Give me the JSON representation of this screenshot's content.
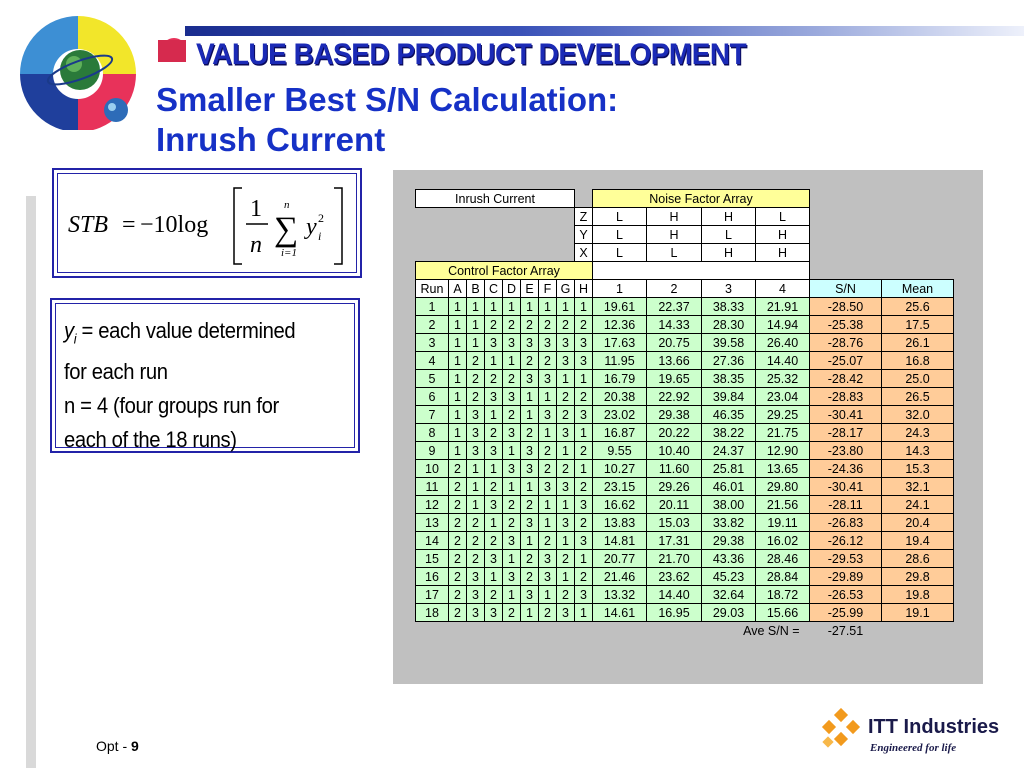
{
  "header": {
    "banner": "VALUE BASED PRODUCT DEVELOPMENT",
    "title_line1": "Smaller Best S/N Calculation:",
    "title_line2": "Inrush Current"
  },
  "formula": {
    "lhs": "STB",
    "eq": "=",
    "coef": "−10log",
    "num": "1",
    "den": "n",
    "sum_upper": "n",
    "sum_lower": "i=1",
    "var": "y",
    "sub": "i",
    "sup": "2"
  },
  "definitions": {
    "yi_var": "y",
    "yi_sub": "i",
    "line1_rest": " = each value determined",
    "line2": "for each run",
    "line3": "n = 4 (four groups run for",
    "line4": "each of the 18 runs)"
  },
  "table": {
    "inrush_label": "Inrush Current",
    "noise_label": "Noise Factor Array",
    "control_label": "Control Factor Array",
    "noise_rows": [
      {
        "factor": "Z",
        "levels": [
          "L",
          "H",
          "H",
          "L"
        ]
      },
      {
        "factor": "Y",
        "levels": [
          "L",
          "H",
          "L",
          "H"
        ]
      },
      {
        "factor": "X",
        "levels": [
          "L",
          "L",
          "H",
          "H"
        ]
      }
    ],
    "headers": [
      "Run",
      "A",
      "B",
      "C",
      "D",
      "E",
      "F",
      "G",
      "H",
      "1",
      "2",
      "3",
      "4",
      "S/N",
      "Mean"
    ],
    "rows": [
      [
        "1",
        "1",
        "1",
        "1",
        "1",
        "1",
        "1",
        "1",
        "1",
        "19.61",
        "22.37",
        "38.33",
        "21.91",
        "-28.50",
        "25.6"
      ],
      [
        "2",
        "1",
        "1",
        "2",
        "2",
        "2",
        "2",
        "2",
        "2",
        "12.36",
        "14.33",
        "28.30",
        "14.94",
        "-25.38",
        "17.5"
      ],
      [
        "3",
        "1",
        "1",
        "3",
        "3",
        "3",
        "3",
        "3",
        "3",
        "17.63",
        "20.75",
        "39.58",
        "26.40",
        "-28.76",
        "26.1"
      ],
      [
        "4",
        "1",
        "2",
        "1",
        "1",
        "2",
        "2",
        "3",
        "3",
        "11.95",
        "13.66",
        "27.36",
        "14.40",
        "-25.07",
        "16.8"
      ],
      [
        "5",
        "1",
        "2",
        "2",
        "2",
        "3",
        "3",
        "1",
        "1",
        "16.79",
        "19.65",
        "38.35",
        "25.32",
        "-28.42",
        "25.0"
      ],
      [
        "6",
        "1",
        "2",
        "3",
        "3",
        "1",
        "1",
        "2",
        "2",
        "20.38",
        "22.92",
        "39.84",
        "23.04",
        "-28.83",
        "26.5"
      ],
      [
        "7",
        "1",
        "3",
        "1",
        "2",
        "1",
        "3",
        "2",
        "3",
        "23.02",
        "29.38",
        "46.35",
        "29.25",
        "-30.41",
        "32.0"
      ],
      [
        "8",
        "1",
        "3",
        "2",
        "3",
        "2",
        "1",
        "3",
        "1",
        "16.87",
        "20.22",
        "38.22",
        "21.75",
        "-28.17",
        "24.3"
      ],
      [
        "9",
        "1",
        "3",
        "3",
        "1",
        "3",
        "2",
        "1",
        "2",
        "9.55",
        "10.40",
        "24.37",
        "12.90",
        "-23.80",
        "14.3"
      ],
      [
        "10",
        "2",
        "1",
        "1",
        "3",
        "3",
        "2",
        "2",
        "1",
        "10.27",
        "11.60",
        "25.81",
        "13.65",
        "-24.36",
        "15.3"
      ],
      [
        "11",
        "2",
        "1",
        "2",
        "1",
        "1",
        "3",
        "3",
        "2",
        "23.15",
        "29.26",
        "46.01",
        "29.80",
        "-30.41",
        "32.1"
      ],
      [
        "12",
        "2",
        "1",
        "3",
        "2",
        "2",
        "1",
        "1",
        "3",
        "16.62",
        "20.11",
        "38.00",
        "21.56",
        "-28.11",
        "24.1"
      ],
      [
        "13",
        "2",
        "2",
        "1",
        "2",
        "3",
        "1",
        "3",
        "2",
        "13.83",
        "15.03",
        "33.82",
        "19.11",
        "-26.83",
        "20.4"
      ],
      [
        "14",
        "2",
        "2",
        "2",
        "3",
        "1",
        "2",
        "1",
        "3",
        "14.81",
        "17.31",
        "29.38",
        "16.02",
        "-26.12",
        "19.4"
      ],
      [
        "15",
        "2",
        "2",
        "3",
        "1",
        "2",
        "3",
        "2",
        "1",
        "20.77",
        "21.70",
        "43.36",
        "28.46",
        "-29.53",
        "28.6"
      ],
      [
        "16",
        "2",
        "3",
        "1",
        "3",
        "2",
        "3",
        "1",
        "2",
        "21.46",
        "23.62",
        "45.23",
        "28.84",
        "-29.89",
        "29.8"
      ],
      [
        "17",
        "2",
        "3",
        "2",
        "1",
        "3",
        "1",
        "2",
        "3",
        "13.32",
        "14.40",
        "32.64",
        "18.72",
        "-26.53",
        "19.8"
      ],
      [
        "18",
        "2",
        "3",
        "3",
        "2",
        "1",
        "2",
        "3",
        "1",
        "14.61",
        "16.95",
        "29.03",
        "15.66",
        "-25.99",
        "19.1"
      ]
    ],
    "ave_label": "Ave S/N =",
    "ave_value": "-27.51"
  },
  "footer": {
    "prefix": "Opt - ",
    "page": "9"
  },
  "branding": {
    "company": "ITT Industries",
    "tagline": "Engineered for life",
    "logo_icon": "itt-diamond-logo",
    "globe_icon": "globe-logo"
  },
  "colors": {
    "title": "#1631c6",
    "border": "#2323a8",
    "yellow": "#ffff99",
    "green": "#ccffcc",
    "peach": "#ffcc99",
    "cyan": "#ccffff",
    "panel": "#c0c0c0"
  }
}
